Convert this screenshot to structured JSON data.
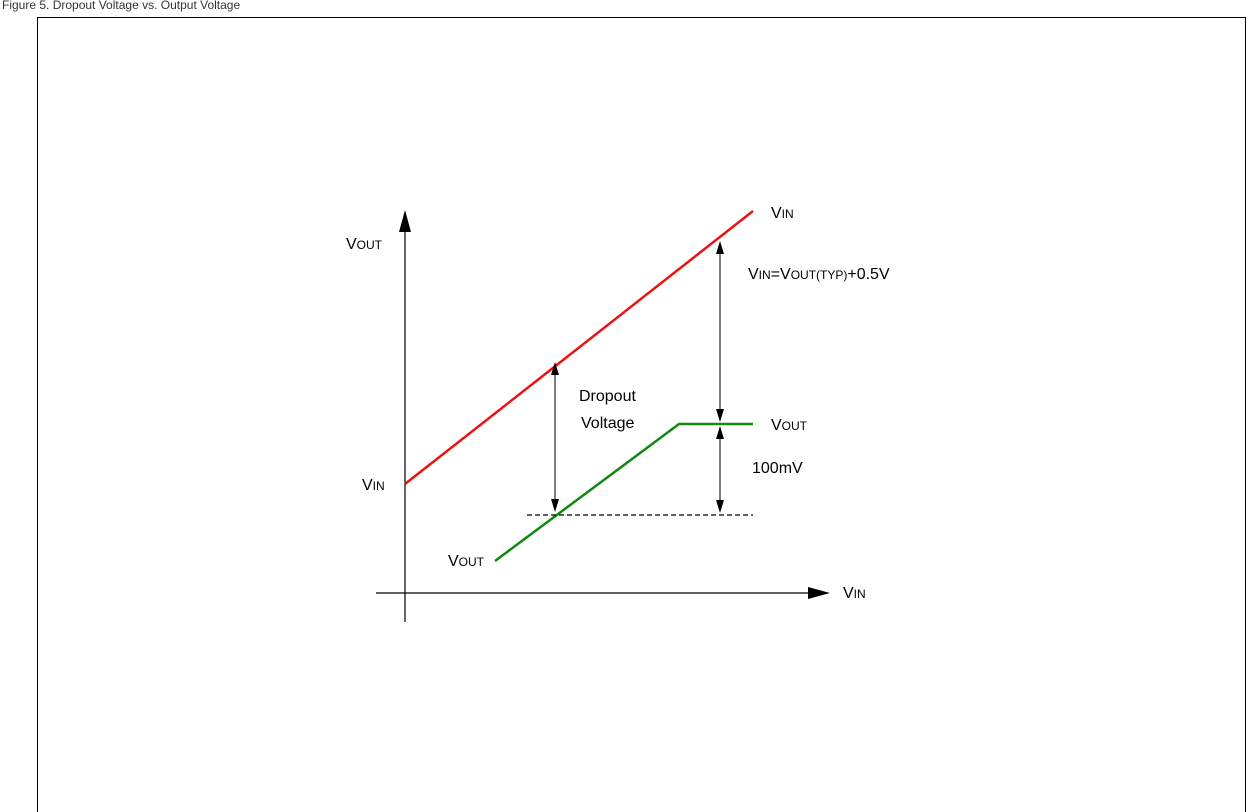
{
  "caption": "Figure 5. Dropout Voltage vs. Output Voltage",
  "labels": {
    "y_axis_main": "V",
    "y_axis_sub": "OUT",
    "x_axis_main": "V",
    "x_axis_sub": "IN",
    "vin_line_main": "V",
    "vin_line_sub": "IN",
    "vin_intercept_main": "V",
    "vin_intercept_sub": "IN",
    "vout_flat_main": "V",
    "vout_flat_sub": "OUT",
    "vout_start_main": "V",
    "vout_start_sub": "OUT",
    "dropout_line1": "Dropout",
    "dropout_line2": "Voltage",
    "condition_v1": "V",
    "condition_sub1": "IN",
    "condition_eq": "=V",
    "condition_sub2": "OUT(TYP)",
    "condition_tail": "+0.5V",
    "hundred_mv": "100mV"
  },
  "colors": {
    "vin_line": "#ee1111",
    "vout_line": "#118811",
    "axes": "#000000"
  }
}
